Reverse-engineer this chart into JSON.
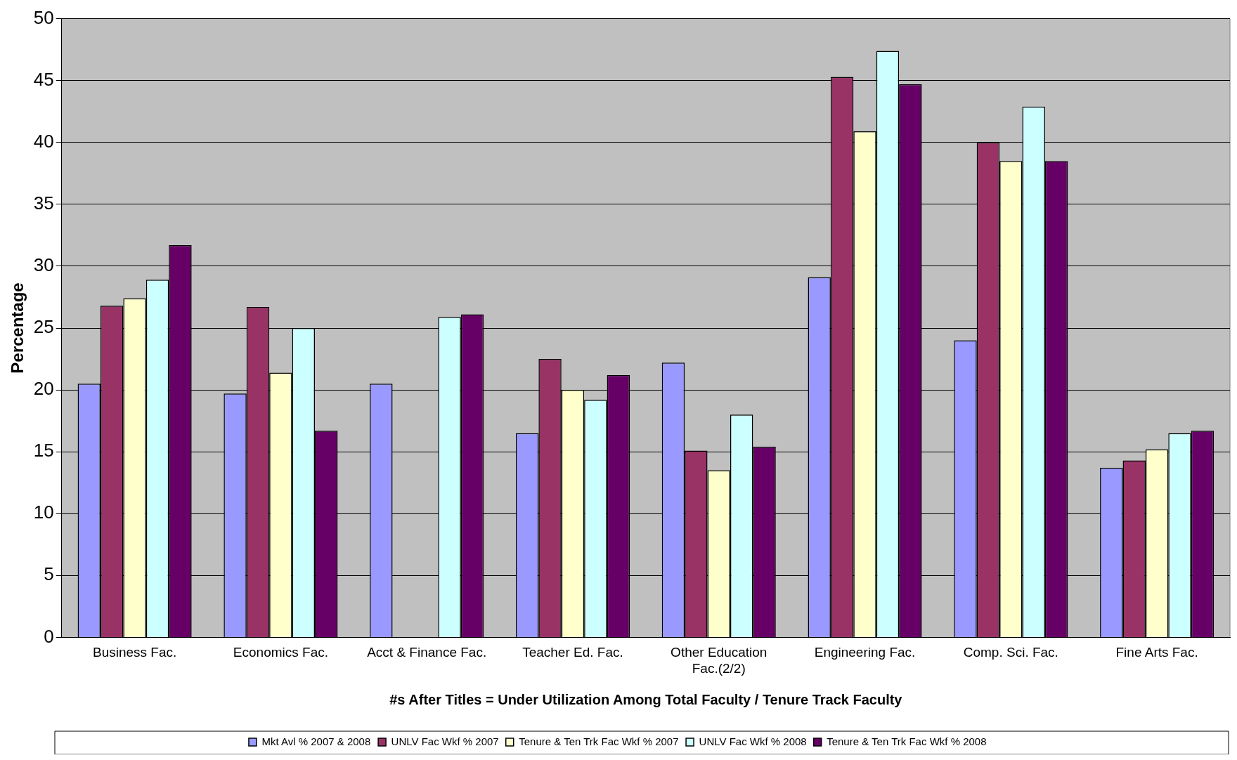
{
  "chart_data": {
    "type": "bar",
    "ylabel": "Percentage",
    "xlabel": "#s After Titles = Under Utilization Among Total Faculty / Tenure Track Faculty",
    "categories": [
      "Business Fac.",
      "Economics Fac.",
      "Acct & Finance Fac.",
      "Teacher Ed. Fac.",
      "Other Education Fac.(2/2)",
      "Engineering Fac.",
      "Comp. Sci. Fac.",
      "Fine Arts Fac."
    ],
    "series": [
      {
        "name": "Mkt Avl % 2007 & 2008",
        "color": "#9999ff",
        "values": [
          20.5,
          19.7,
          20.5,
          16.5,
          22.2,
          29.1,
          24.0,
          13.7
        ]
      },
      {
        "name": "UNLV Fac Wkf % 2007",
        "color": "#993366",
        "values": [
          26.8,
          26.7,
          null,
          22.5,
          15.1,
          45.3,
          40.0,
          14.3
        ]
      },
      {
        "name": "Tenure & Ten Trk Fac Wkf % 2007",
        "color": "#ffffcc",
        "values": [
          27.4,
          21.4,
          null,
          20.0,
          13.5,
          40.9,
          38.5,
          15.2
        ]
      },
      {
        "name": "UNLV Fac Wkf % 2008",
        "color": "#ccffff",
        "values": [
          28.9,
          25.0,
          25.9,
          19.2,
          18.0,
          47.4,
          42.9,
          16.5
        ]
      },
      {
        "name": "Tenure & Ten Trk Fac Wkf % 2008",
        "color": "#660066",
        "values": [
          31.7,
          16.7,
          26.1,
          21.2,
          15.4,
          44.7,
          38.5,
          16.7
        ]
      }
    ],
    "ylim": [
      0,
      50
    ],
    "yticks": [
      0,
      5,
      10,
      15,
      20,
      25,
      30,
      35,
      40,
      45,
      50
    ],
    "grid": "y",
    "legend": "bottom"
  }
}
